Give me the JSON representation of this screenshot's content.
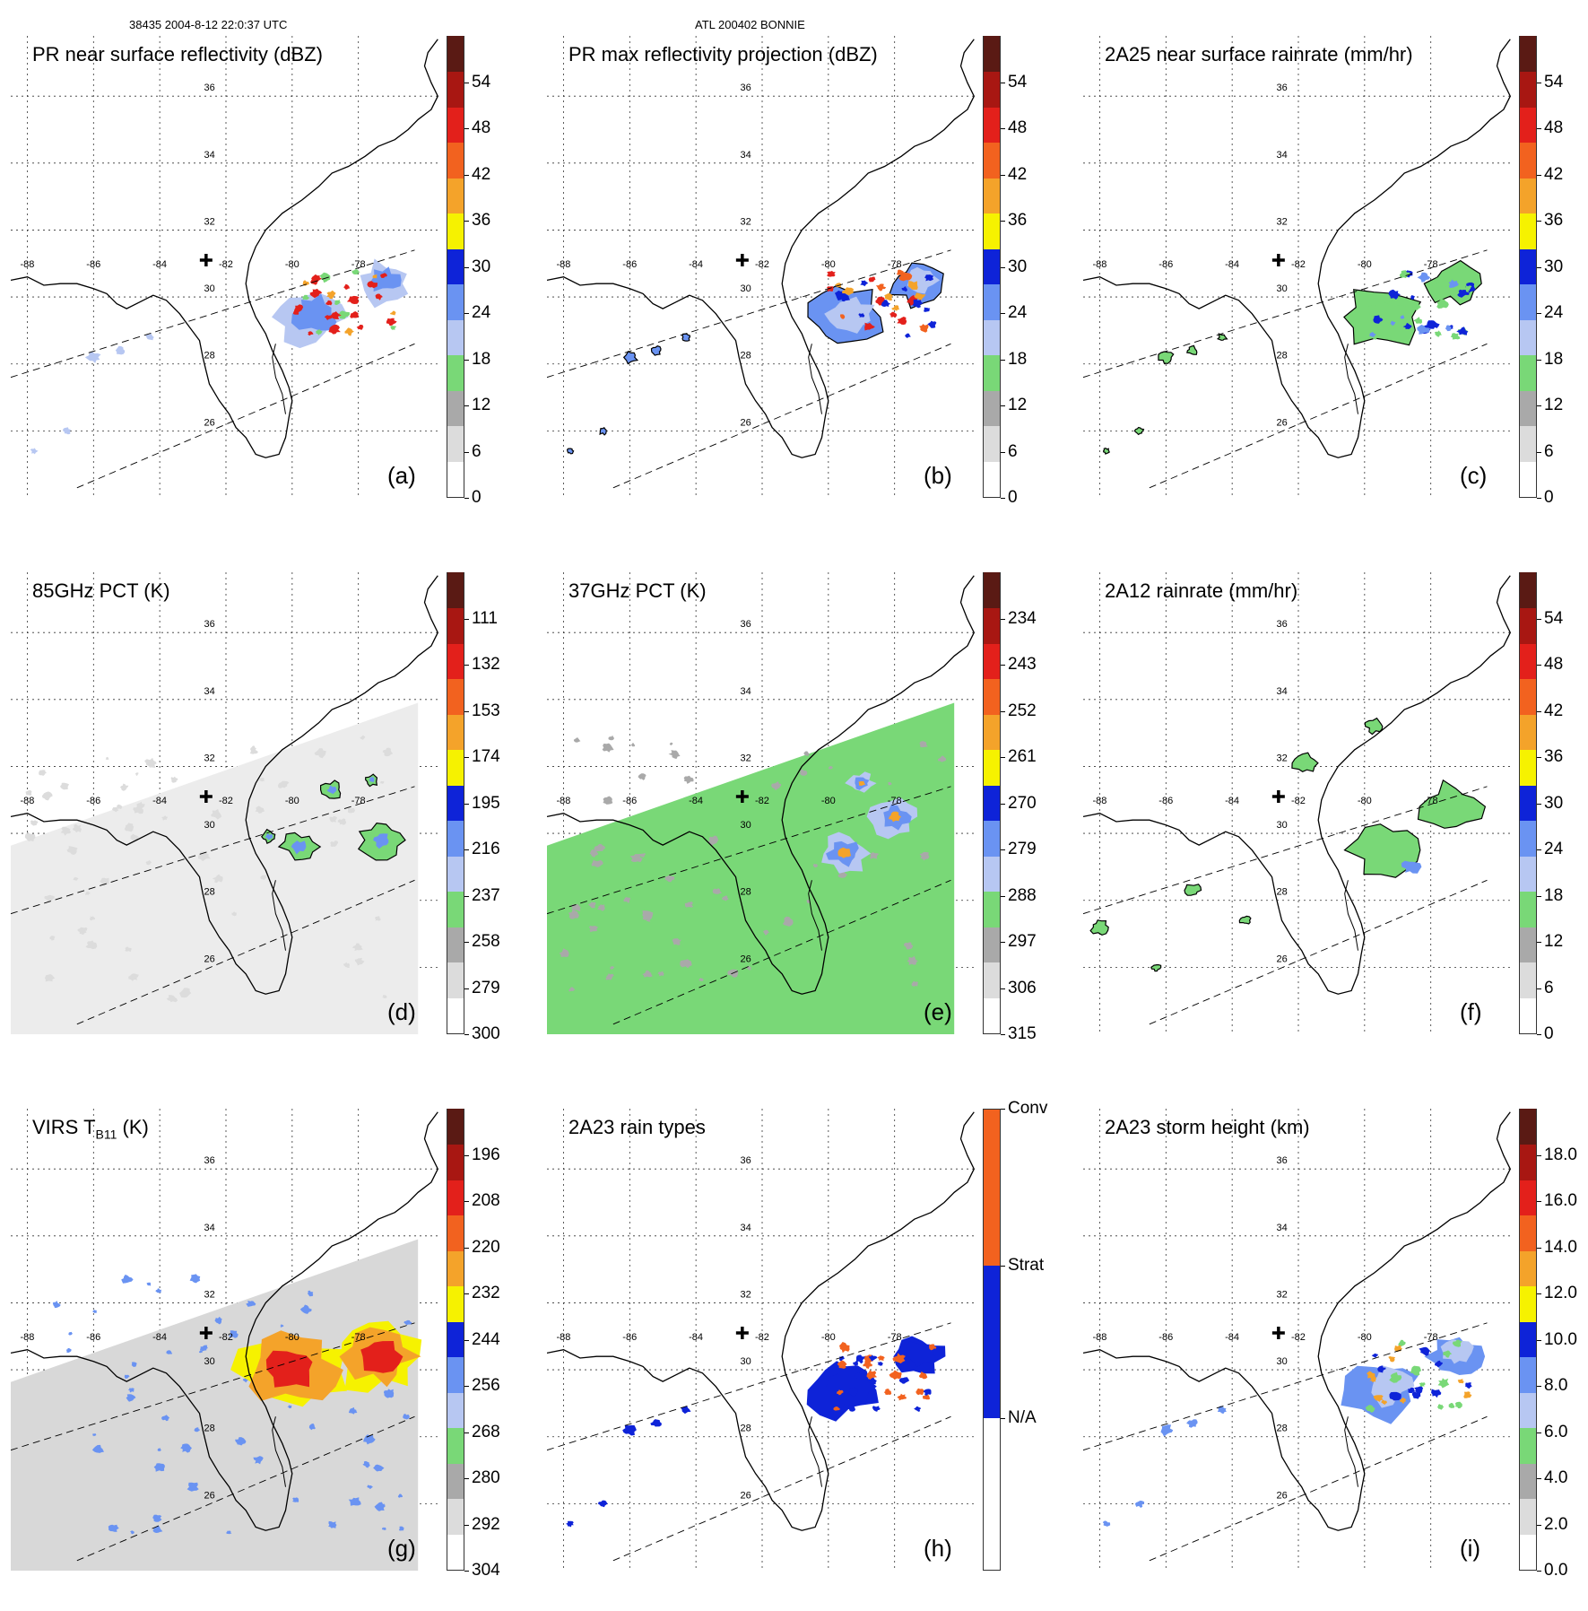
{
  "header": {
    "left": "38435 2004-8-12 22:0:37 UTC",
    "center": "ATL 200402 BONNIE"
  },
  "map": {
    "lon_labels": [
      "-88",
      "-86",
      "-84",
      "-82",
      "-80",
      "-78"
    ],
    "lat_labels": [
      "36",
      "34",
      "32",
      "30",
      "28",
      "26"
    ]
  },
  "colors": {
    "white": "#ffffff",
    "gray_light": "#dcdcdc",
    "gray": "#a9a9a9",
    "green": "#79d877",
    "blue_light": "#b7c7f2",
    "blue": "#6a93f2",
    "blue_dark": "#0e23d8",
    "yellow": "#f6f200",
    "orange": "#f4a32a",
    "orange_dark": "#f2621f",
    "red": "#e3201b",
    "red_dark": "#a81712",
    "brown": "#5a1a14"
  },
  "panels": [
    {
      "id": "a",
      "title": "PR near surface reflectivity (dBZ)",
      "label": "(a)",
      "ticks": [
        "54",
        "48",
        "42",
        "36",
        "30",
        "24",
        "18",
        "12",
        "6",
        "0"
      ]
    },
    {
      "id": "b",
      "title": "PR max reflectivity projection (dBZ)",
      "label": "(b)",
      "ticks": [
        "54",
        "48",
        "42",
        "36",
        "30",
        "24",
        "18",
        "12",
        "6",
        "0"
      ]
    },
    {
      "id": "c",
      "title": "2A25 near surface rainrate (mm/hr)",
      "label": "(c)",
      "ticks": [
        "54",
        "48",
        "42",
        "36",
        "30",
        "24",
        "18",
        "12",
        "6",
        "0"
      ]
    },
    {
      "id": "d",
      "title": "85GHz PCT (K)",
      "label": "(d)",
      "ticks": [
        "111",
        "132",
        "153",
        "174",
        "195",
        "216",
        "237",
        "258",
        "279",
        "300"
      ]
    },
    {
      "id": "e",
      "title": "37GHz PCT (K)",
      "label": "(e)",
      "ticks": [
        "234",
        "243",
        "252",
        "261",
        "270",
        "279",
        "288",
        "297",
        "306",
        "315"
      ]
    },
    {
      "id": "f",
      "title": "2A12 rainrate (mm/hr)",
      "label": "(f)",
      "ticks": [
        "54",
        "48",
        "42",
        "36",
        "30",
        "24",
        "18",
        "12",
        "6",
        "0"
      ]
    },
    {
      "id": "g",
      "title": "VIRS T",
      "title_sub": "B11",
      "title_after": " (K)",
      "label": "(g)",
      "ticks": [
        "196",
        "208",
        "220",
        "232",
        "244",
        "256",
        "268",
        "280",
        "292",
        "304"
      ]
    },
    {
      "id": "h",
      "title": "2A23 rain types",
      "label": "(h)",
      "ticks": [
        "Conv",
        "Strat",
        "N/A"
      ]
    },
    {
      "id": "i",
      "title": "2A23 storm height (km)",
      "label": "(i)",
      "ticks": [
        "18.0",
        "16.0",
        "14.0",
        "12.0",
        "10.0",
        "8.0",
        "6.0",
        "4.0",
        "2.0",
        "0.0"
      ]
    }
  ]
}
